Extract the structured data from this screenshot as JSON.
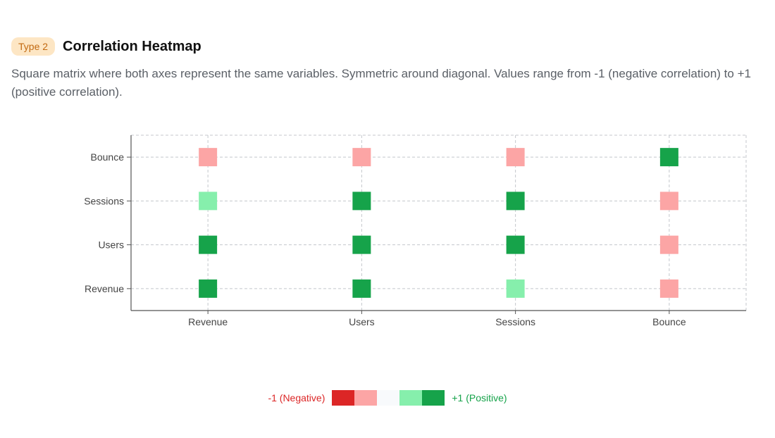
{
  "header": {
    "badge": "Type 2",
    "title": "Correlation Heatmap",
    "description": "Square matrix where both axes represent the same variables. Symmetric around diagonal. Values range from -1 (negative correlation) to +1 (positive correlation)."
  },
  "legend": {
    "negative_label": "-1 (Negative)",
    "positive_label": "+1 (Positive)",
    "swatches": [
      "#dc2626",
      "#fca5a5",
      "#f8fafc",
      "#86efac",
      "#16a34a"
    ]
  },
  "chart_data": {
    "type": "heatmap",
    "title": "",
    "xlabel": "",
    "ylabel": "",
    "x_categories": [
      "Revenue",
      "Users",
      "Sessions",
      "Bounce"
    ],
    "y_categories": [
      "Revenue",
      "Users",
      "Sessions",
      "Bounce"
    ],
    "value_range": [
      -1,
      1
    ],
    "grid": true,
    "legend_position": "bottom-center",
    "cells": [
      {
        "x": "Revenue",
        "y": "Revenue",
        "value": 1.0
      },
      {
        "x": "Users",
        "y": "Revenue",
        "value": 0.9
      },
      {
        "x": "Sessions",
        "y": "Revenue",
        "value": 0.5
      },
      {
        "x": "Bounce",
        "y": "Revenue",
        "value": -0.5
      },
      {
        "x": "Revenue",
        "y": "Users",
        "value": 0.9
      },
      {
        "x": "Users",
        "y": "Users",
        "value": 1.0
      },
      {
        "x": "Sessions",
        "y": "Users",
        "value": 0.9
      },
      {
        "x": "Bounce",
        "y": "Users",
        "value": -0.5
      },
      {
        "x": "Revenue",
        "y": "Sessions",
        "value": 0.5
      },
      {
        "x": "Users",
        "y": "Sessions",
        "value": 0.9
      },
      {
        "x": "Sessions",
        "y": "Sessions",
        "value": 1.0
      },
      {
        "x": "Bounce",
        "y": "Sessions",
        "value": -0.5
      },
      {
        "x": "Revenue",
        "y": "Bounce",
        "value": -0.5
      },
      {
        "x": "Users",
        "y": "Bounce",
        "value": -0.5
      },
      {
        "x": "Sessions",
        "y": "Bounce",
        "value": -0.5
      },
      {
        "x": "Bounce",
        "y": "Bounce",
        "value": 1.0
      }
    ]
  }
}
